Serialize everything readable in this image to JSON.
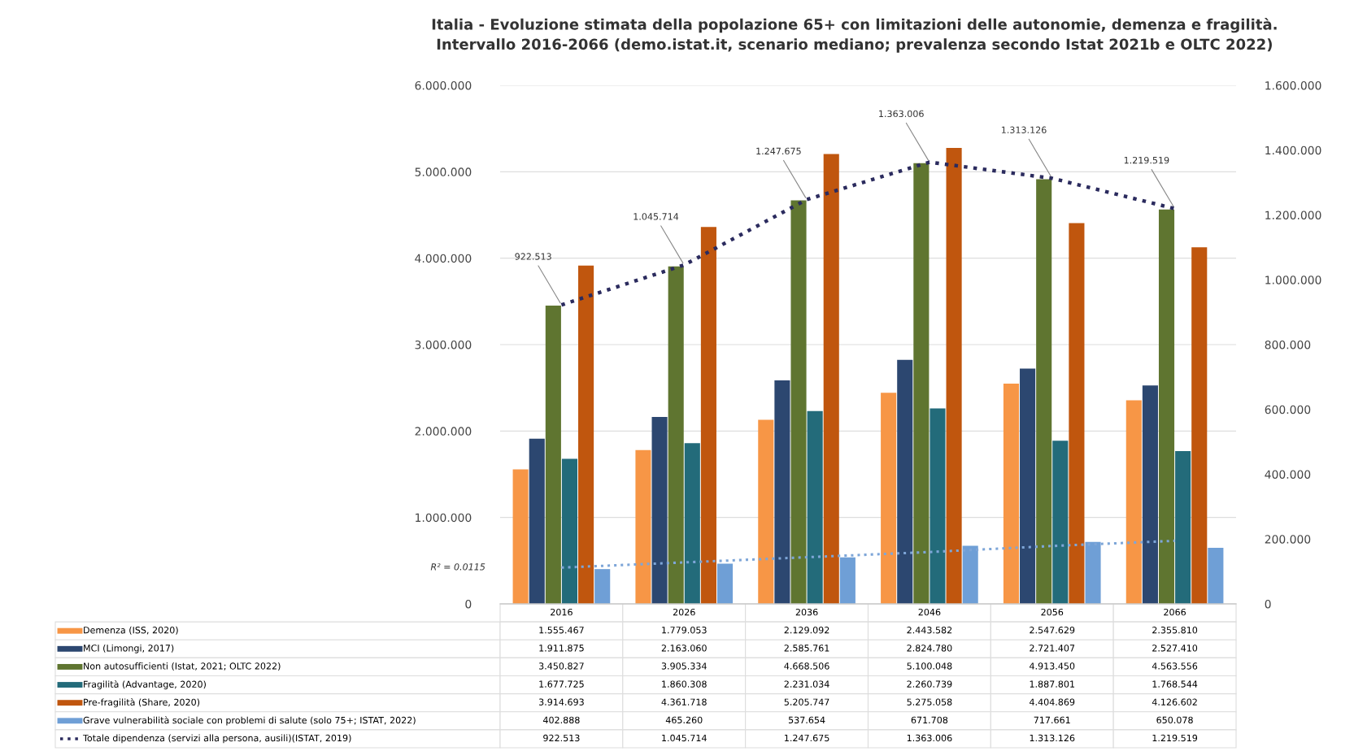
{
  "chart_data": {
    "type": "bar",
    "title": "Italia - Evoluzione stimata della popolazione 65+ con limitazioni delle autonomie, demenza e fragilità.\nIntervallo 2016-2066 (demo.istat.it, scenario mediano; prevalenza secondo Istat 2021b e OLTC 2022)",
    "categories": [
      "2016",
      "2026",
      "2036",
      "2046",
      "2056",
      "2066"
    ],
    "series": [
      {
        "name": "Demenza (ISS, 2020)",
        "color": "#f79646",
        "values": [
          1555467,
          1779053,
          2129092,
          2443582,
          2547629,
          2355810
        ],
        "value_labels": [
          "1.555.467",
          "1.779.053",
          "2.129.092",
          "2.443.582",
          "2.547.629",
          "2.355.810"
        ]
      },
      {
        "name": "MCI (Limongi, 2017)",
        "color": "#2c4770",
        "values": [
          1911875,
          2163060,
          2585761,
          2824780,
          2721407,
          2527410
        ],
        "value_labels": [
          "1.911.875",
          "2.163.060",
          "2.585.761",
          "2.824.780",
          "2.721.407",
          "2.527.410"
        ]
      },
      {
        "name": "Non autosufficienti (Istat, 2021; OLTC 2022)",
        "color": "#5f7530",
        "values": [
          3450827,
          3905334,
          4668506,
          5100048,
          4913450,
          4563556
        ],
        "value_labels": [
          "3.450.827",
          "3.905.334",
          "4.668.506",
          "5.100.048",
          "4.913.450",
          "4.563.556"
        ]
      },
      {
        "name": "Fragilità (Advantage, 2020)",
        "color": "#236b7a",
        "values": [
          1677725,
          1860308,
          2231034,
          2260739,
          1887801,
          1768544
        ],
        "value_labels": [
          "1.677.725",
          "1.860.308",
          "2.231.034",
          "2.260.739",
          "1.887.801",
          "1.768.544"
        ]
      },
      {
        "name": "Pre-fragilità (Share, 2020)",
        "color": "#c0560e",
        "values": [
          3914693,
          4361718,
          5205747,
          5275058,
          4404869,
          4126602
        ],
        "value_labels": [
          "3.914.693",
          "4.361.718",
          "5.205.747",
          "5.275.058",
          "4.404.869",
          "4.126.602"
        ]
      },
      {
        "name": "Grave vulnerabilità sociale con problemi di salute (solo 75+; ISTAT, 2022)",
        "color": "#6f9fd6",
        "values": [
          402888,
          465260,
          537654,
          671708,
          717661,
          650078
        ],
        "value_labels": [
          "402.888",
          "465.260",
          "537.654",
          "671.708",
          "717.661",
          "650.078"
        ]
      },
      {
        "name": "Totale dipendenza (servizi alla persona, ausili)(ISTAT, 2019)",
        "type": "line",
        "axis": "y2",
        "color": "#2b2b5e",
        "line_style": "dotted",
        "values": [
          922513,
          1045714,
          1247675,
          1363006,
          1313126,
          1219519
        ],
        "value_labels": [
          "922.513",
          "1.045.714",
          "1.247.675",
          "1.363.006",
          "1.313.126",
          "1.219.519"
        ]
      },
      {
        "type": "line",
        "color": "#7ea6d8",
        "line_style": "dotted",
        "values": [
          420000,
          480000,
          540000,
          600000,
          670000,
          730000
        ]
      }
    ],
    "annotations": [
      "R² = 0.0115"
    ],
    "ylim": [
      0,
      6000000
    ],
    "yticks": [
      {
        "value": 0,
        "label": "0"
      },
      {
        "value": 1000000,
        "label": "1.000.000"
      },
      {
        "value": 2000000,
        "label": "2.000.000"
      },
      {
        "value": 3000000,
        "label": "3.000.000"
      },
      {
        "value": 4000000,
        "label": "4.000.000"
      },
      {
        "value": 5000000,
        "label": "5.000.000"
      },
      {
        "value": 6000000,
        "label": "6.000.000"
      }
    ],
    "y2lim": [
      0,
      1600000
    ],
    "y2ticks": [
      {
        "value": 0,
        "label": "0"
      },
      {
        "value": 200000,
        "label": "200.000"
      },
      {
        "value": 400000,
        "label": "400.000"
      },
      {
        "value": 600000,
        "label": "600.000"
      },
      {
        "value": 800000,
        "label": "800.000"
      },
      {
        "value": 1000000,
        "label": "1.000.000"
      },
      {
        "value": 1200000,
        "label": "1.200.000"
      },
      {
        "value": 1400000,
        "label": "1.400.000"
      },
      {
        "value": 1600000,
        "label": "1.600.000"
      }
    ],
    "grid": "y",
    "legend": "bottom"
  }
}
